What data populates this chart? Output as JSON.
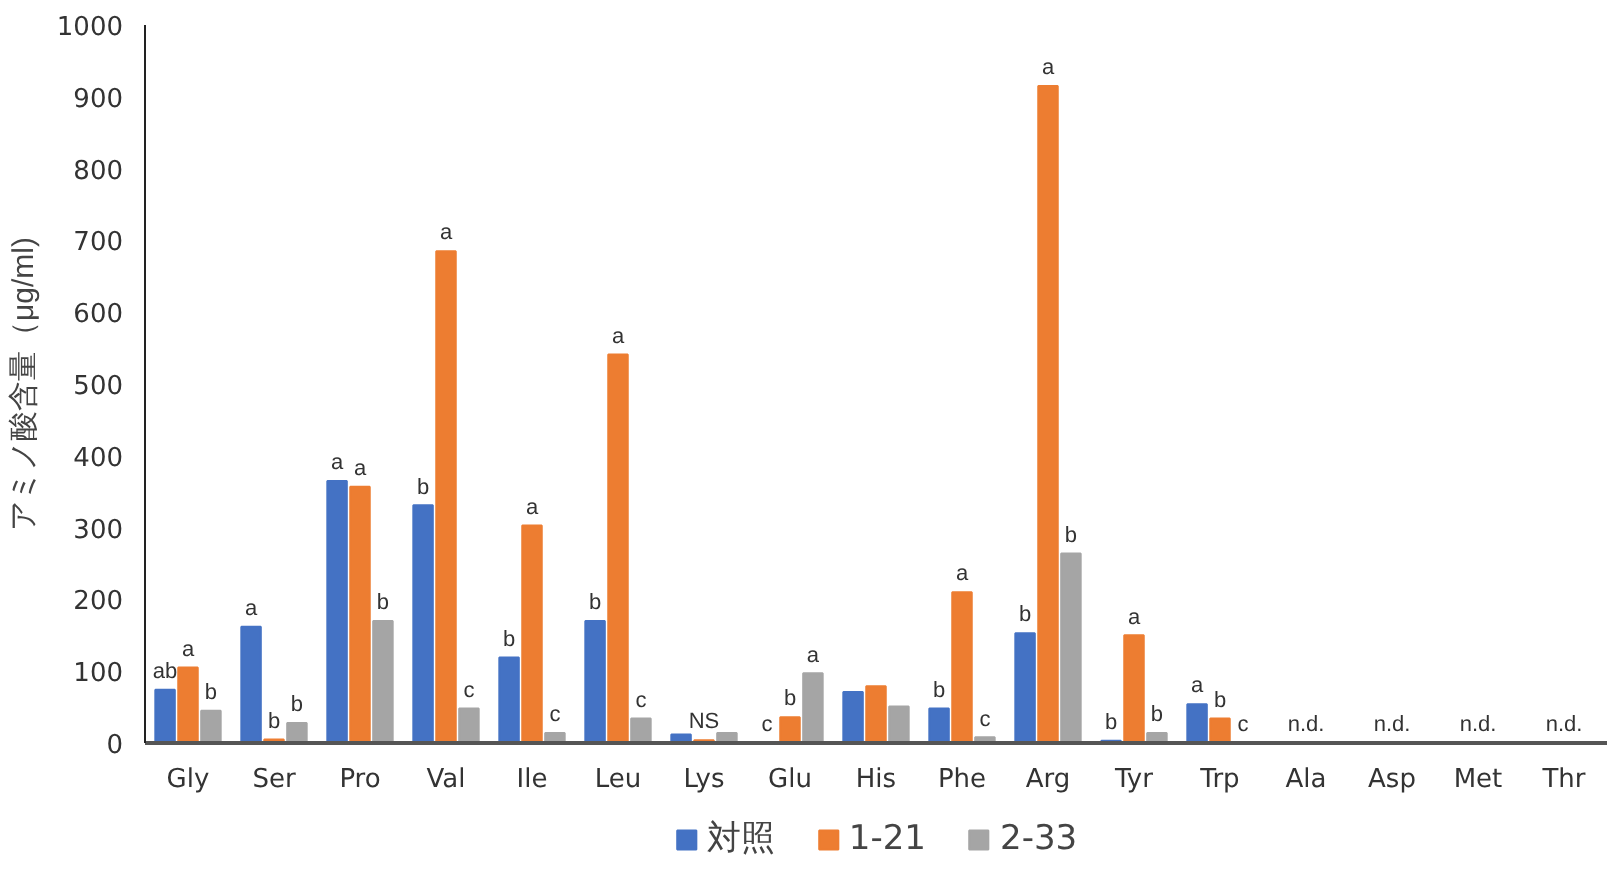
{
  "chart_data": {
    "type": "bar",
    "ylabel": "アミノ酸含量（μg/ml)",
    "categories": [
      "Gly",
      "Ser",
      "Pro",
      "Val",
      "Ile",
      "Leu",
      "Lys",
      "Glu",
      "His",
      "Phe",
      "Arg",
      "Tyr",
      "Trp",
      "Ala",
      "Asp",
      "Met",
      "Thr"
    ],
    "series": [
      {
        "name": "対照",
        "color": "#4472c4",
        "values": [
          74,
          162,
          365,
          331,
          119,
          170,
          12,
          0,
          71,
          48,
          153,
          3,
          54,
          null,
          null,
          null,
          null
        ],
        "value_labels": [
          "ab",
          "a",
          "a",
          "b",
          "b",
          "b",
          null,
          "c",
          null,
          "b",
          "b",
          "b",
          "a",
          null,
          null,
          null,
          null
        ]
      },
      {
        "name": "1-21",
        "color": "#ed7d31",
        "values": [
          105,
          5,
          357,
          685,
          303,
          541,
          4,
          36,
          79,
          210,
          915,
          150,
          34,
          null,
          null,
          null,
          null
        ],
        "value_labels": [
          "a",
          "b",
          "a",
          "a",
          "a",
          "a",
          "NS",
          "b",
          null,
          "a",
          "a",
          "a",
          "b",
          "n.d.",
          "n.d.",
          "n.d.",
          "n.d."
        ]
      },
      {
        "name": "2-33",
        "color": "#a5a5a5",
        "values": [
          45,
          28,
          170,
          48,
          14,
          34,
          14,
          97,
          51,
          8,
          264,
          14,
          0,
          null,
          null,
          null,
          null
        ],
        "value_labels": [
          "b",
          "b",
          "b",
          "c",
          "c",
          "c",
          null,
          "a",
          null,
          "c",
          "b",
          "b",
          "c",
          null,
          null,
          null,
          null
        ]
      }
    ],
    "ylim": [
      0,
      1000
    ],
    "yticks": [
      0,
      100,
      200,
      300,
      400,
      500,
      600,
      700,
      800,
      900,
      1000
    ],
    "grid": false,
    "legend": "bottom"
  }
}
